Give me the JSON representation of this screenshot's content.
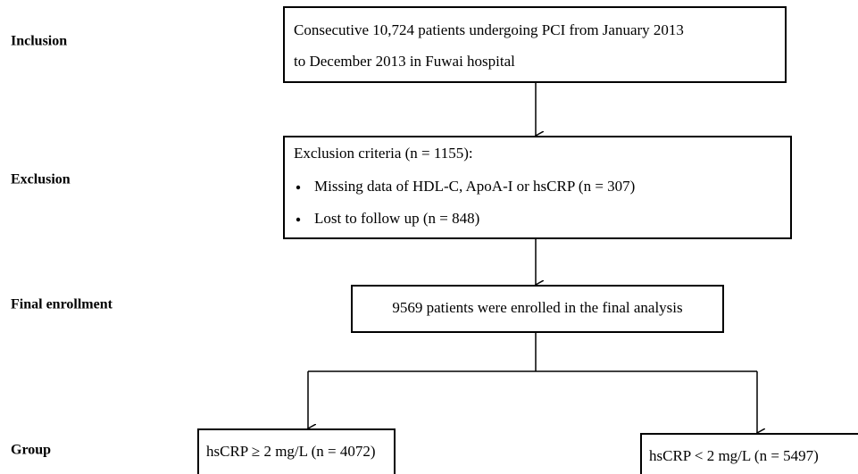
{
  "stages": {
    "inclusion": "Inclusion",
    "exclusion": "Exclusion",
    "final": "Final enrollment",
    "group": "Group"
  },
  "nodes": [
    {
      "lines": [
        "Consecutive 10,724 patients undergoing PCI from January 2013",
        "to December 2013 in Fuwai hospital"
      ]
    },
    {
      "title": "Exclusion criteria (n = 1155):",
      "items": [
        "Missing data of HDL-C, ApoA-I or hsCRP (n = 307)",
        "Lost to follow up (n = 848)"
      ]
    },
    {
      "label": "9569 patients were enrolled in the final analysis"
    },
    {
      "label": "hsCRP ≥ 2 mg/L (n = 4072)"
    },
    {
      "label": "hsCRP < 2 mg/L (n = 5497)"
    }
  ]
}
